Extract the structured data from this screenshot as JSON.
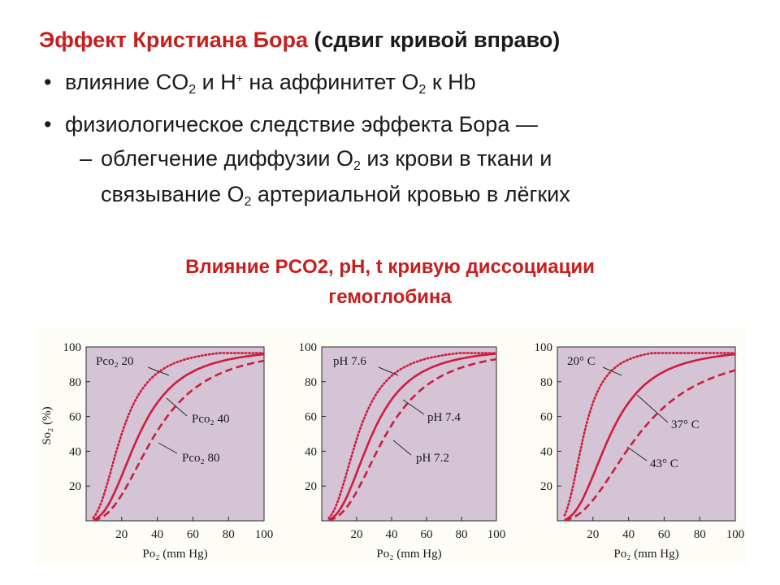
{
  "heading": {
    "red": "Эффект Кристиана Бора",
    "black": " (сдвиг кривой вправо)"
  },
  "bullet_mark": "•",
  "dash_mark": "–",
  "bullet1": {
    "p1": "влияние CO",
    "sub1": "2",
    "p2": " и H",
    "sup1": "+",
    "p3": " на аффинитет O",
    "sub2": "2",
    "p4": " к Hb"
  },
  "bullet2": {
    "text": "физиологическое следствие эффекта Бора —"
  },
  "dash1": {
    "p1": "облегчение диффузии O",
    "sub1": "2",
    "p2": " из крови в ткани и"
  },
  "dash2": {
    "p1": "связывание O",
    "sub1": "2",
    "p2": " артериальной кровью в лёгких"
  },
  "subtitle": {
    "line1": "Влияние PCO2, pH, t  кривую диссоциации",
    "line2": "гемоглобина"
  },
  "colors": {
    "heading_red": "#c81e1e",
    "plot_bg": "#d4c4d6",
    "curve": "#d01c3c",
    "text": "#1a1a1a"
  },
  "chart_data": [
    {
      "type": "line",
      "title": "",
      "xlabel": "Po₂ (mm Hg)",
      "ylabel": "So₂ (%)",
      "xlim": [
        0,
        100
      ],
      "ylim": [
        0,
        100
      ],
      "xticks": [
        "20",
        "40",
        "60",
        "80",
        "100"
      ],
      "yticks": [
        "20",
        "40",
        "60",
        "80",
        "100"
      ],
      "grid": false,
      "series": [
        {
          "name": "Pco₂ 20",
          "style": "dotted",
          "p50": 20,
          "hill": 2.5
        },
        {
          "name": "Pco₂ 40",
          "style": "solid",
          "p50": 30,
          "hill": 2.6
        },
        {
          "name": "Pco₂ 80",
          "style": "dashed",
          "p50": 39,
          "hill": 2.6
        }
      ]
    },
    {
      "type": "line",
      "title": "",
      "xlabel": "Po₂ (mm Hg)",
      "ylabel": "",
      "xlim": [
        0,
        100
      ],
      "ylim": [
        0,
        100
      ],
      "xticks": [
        "20",
        "40",
        "60",
        "80",
        "100"
      ],
      "yticks": [
        "20",
        "40",
        "60",
        "80",
        "100"
      ],
      "grid": false,
      "series": [
        {
          "name": "pH 7.6",
          "style": "dotted",
          "p50": 21,
          "hill": 2.5
        },
        {
          "name": "pH 7.4",
          "style": "solid",
          "p50": 29,
          "hill": 2.6
        },
        {
          "name": "pH 7.2",
          "style": "dashed",
          "p50": 37,
          "hill": 2.6
        }
      ]
    },
    {
      "type": "line",
      "title": "",
      "xlabel": "Po₂ (mm Hg)",
      "ylabel": "",
      "xlim": [
        0,
        100
      ],
      "ylim": [
        0,
        100
      ],
      "xticks": [
        "20",
        "40",
        "60",
        "80",
        "100"
      ],
      "yticks": [
        "20",
        "40",
        "60",
        "80",
        "100"
      ],
      "grid": false,
      "series": [
        {
          "name": "20° C",
          "style": "dotted",
          "p50": 15,
          "hill": 2.6
        },
        {
          "name": "37° C",
          "style": "solid",
          "p50": 30,
          "hill": 2.6
        },
        {
          "name": "43° C",
          "style": "dashed",
          "p50": 46,
          "hill": 2.4
        }
      ]
    }
  ]
}
